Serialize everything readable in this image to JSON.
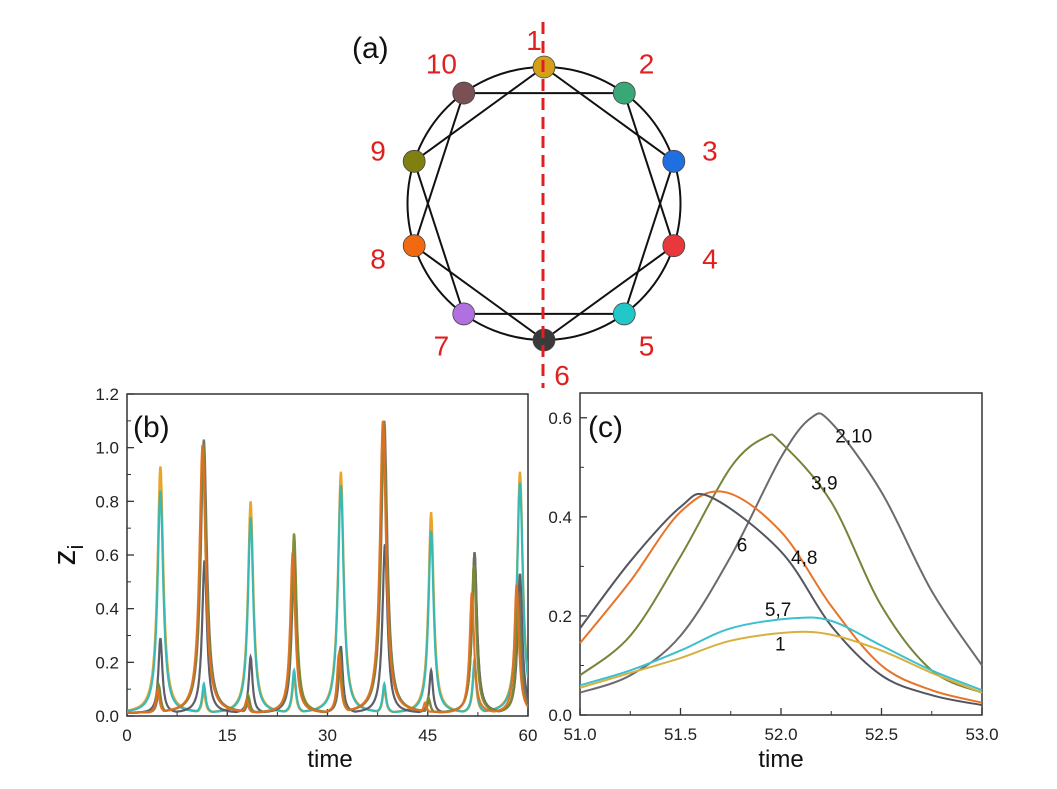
{
  "panel_a": {
    "label": "(a)",
    "label_color": "#e02020",
    "symmetry_line_color": "#e02020",
    "nodes": [
      {
        "id": "1",
        "color": "#d4a017"
      },
      {
        "id": "2",
        "color": "#3aa876"
      },
      {
        "id": "3",
        "color": "#1f6fe0"
      },
      {
        "id": "4",
        "color": "#e8383c"
      },
      {
        "id": "5",
        "color": "#22c8c8"
      },
      {
        "id": "6",
        "color": "#3a3a3a"
      },
      {
        "id": "7",
        "color": "#b070e0"
      },
      {
        "id": "8",
        "color": "#f26a10"
      },
      {
        "id": "9",
        "color": "#808010"
      },
      {
        "id": "10",
        "color": "#7a5055"
      }
    ],
    "ring": true,
    "chords": [
      [
        "1",
        "3"
      ],
      [
        "1",
        "9"
      ],
      [
        "10",
        "2"
      ],
      [
        "10",
        "8"
      ],
      [
        "9",
        "7"
      ],
      [
        "2",
        "4"
      ],
      [
        "3",
        "5"
      ],
      [
        "4",
        "6"
      ],
      [
        "8",
        "6"
      ],
      [
        "7",
        "5"
      ]
    ]
  },
  "chart_data": [
    {
      "type": "line",
      "panel_label": "(b)",
      "xlabel": "time",
      "ylabel": "z",
      "ylabel_subscript": "i",
      "xlim": [
        0,
        60
      ],
      "ylim": [
        0,
        1.2
      ],
      "xticks": [
        "0",
        "15",
        "30",
        "45",
        "60"
      ],
      "yticks": [
        "0.0",
        "0.2",
        "0.4",
        "0.6",
        "0.8",
        "1.0",
        "1.2"
      ],
      "baseline": 0.01,
      "series": [
        {
          "color": "#e8a020",
          "peaks": [
            [
              5,
              0.92
            ],
            [
              11.5,
              0.08
            ],
            [
              18.5,
              0.79
            ],
            [
              25,
              0.13
            ],
            [
              32,
              0.9
            ],
            [
              38.5,
              0.09
            ],
            [
              45.5,
              0.75
            ],
            [
              52,
              0.17
            ],
            [
              58.8,
              0.9
            ]
          ]
        },
        {
          "color": "#30b8b8",
          "peaks": [
            [
              5,
              0.83
            ],
            [
              11.5,
              0.11
            ],
            [
              18.5,
              0.73
            ],
            [
              25,
              0.16
            ],
            [
              32,
              0.85
            ],
            [
              38.5,
              0.11
            ],
            [
              45.5,
              0.68
            ],
            [
              52,
              0.2
            ],
            [
              58.8,
              0.86
            ]
          ]
        },
        {
          "color": "#555560",
          "peaks": [
            [
              5,
              0.28
            ],
            [
              11.6,
              0.57
            ],
            [
              18.5,
              0.21
            ],
            [
              25,
              0.55
            ],
            [
              32,
              0.25
            ],
            [
              38.6,
              0.63
            ],
            [
              45.5,
              0.16
            ],
            [
              52,
              0.6
            ],
            [
              58.8,
              0.52
            ]
          ]
        },
        {
          "color": "#707060",
          "peaks": [
            [
              4.8,
              0.1
            ],
            [
              11.5,
              1.02
            ],
            [
              18.2,
              0.06
            ],
            [
              25,
              0.6
            ],
            [
              31.9,
              0.22
            ],
            [
              38.5,
              1.09
            ],
            [
              45.2,
              0.05
            ],
            [
              52,
              0.6
            ],
            [
              58.7,
              0.45
            ]
          ]
        },
        {
          "color": "#7a8a30",
          "peaks": [
            [
              4.7,
              0.11
            ],
            [
              11.4,
              1.0
            ],
            [
              18.1,
              0.07
            ],
            [
              25,
              0.67
            ],
            [
              31.8,
              0.23
            ],
            [
              38.4,
              1.08
            ],
            [
              45.1,
              0.06
            ],
            [
              51.9,
              0.55
            ],
            [
              58.5,
              0.4
            ]
          ]
        },
        {
          "color": "#e07020",
          "peaks": [
            [
              4.6,
              0.09
            ],
            [
              11.3,
              1.0
            ],
            [
              17.9,
              0.05
            ],
            [
              24.8,
              0.6
            ],
            [
              31.7,
              0.22
            ],
            [
              38.3,
              1.09
            ],
            [
              44.6,
              0.04
            ],
            [
              51.6,
              0.45
            ],
            [
              58.3,
              0.48
            ]
          ]
        }
      ]
    },
    {
      "type": "line",
      "panel_label": "(c)",
      "xlabel": "time",
      "xlim": [
        51.0,
        53.0
      ],
      "ylim": [
        0,
        0.65
      ],
      "xticks": [
        "51.0",
        "51.5",
        "52.0",
        "52.5",
        "53.0"
      ],
      "yticks": [
        "0.0",
        "0.2",
        "0.4",
        "0.6"
      ],
      "series": [
        {
          "label": "2,10",
          "color": "#6e6870",
          "label_at": [
            52.27,
            0.55
          ],
          "x": [
            51,
            51.25,
            51.5,
            51.75,
            52,
            52.15,
            52.25,
            52.5,
            52.75,
            53
          ],
          "y": [
            0.045,
            0.08,
            0.16,
            0.32,
            0.52,
            0.6,
            0.59,
            0.45,
            0.25,
            0.1
          ]
        },
        {
          "label": "3,9",
          "color": "#74843a",
          "label_at": [
            52.15,
            0.455
          ],
          "x": [
            51,
            51.25,
            51.5,
            51.75,
            51.92,
            52,
            52.25,
            52.5,
            52.75,
            53
          ],
          "y": [
            0.08,
            0.16,
            0.32,
            0.5,
            0.56,
            0.55,
            0.43,
            0.22,
            0.09,
            0.045
          ]
        },
        {
          "label": "4,8",
          "color": "#e8742a",
          "label_at": [
            52.05,
            0.305
          ],
          "x": [
            51,
            51.25,
            51.5,
            51.72,
            52,
            52.25,
            52.5,
            52.75,
            53
          ],
          "y": [
            0.145,
            0.27,
            0.41,
            0.45,
            0.37,
            0.22,
            0.1,
            0.05,
            0.025
          ]
        },
        {
          "label": "6",
          "color": "#555560",
          "label_at": [
            51.78,
            0.33
          ],
          "x": [
            51,
            51.25,
            51.5,
            51.65,
            52,
            52.25,
            52.5,
            52.75,
            53
          ],
          "y": [
            0.175,
            0.31,
            0.42,
            0.44,
            0.33,
            0.18,
            0.08,
            0.04,
            0.02
          ]
        },
        {
          "label": "5,7",
          "color": "#3cc0d0",
          "label_at": [
            51.92,
            0.2
          ],
          "x": [
            51,
            51.25,
            51.5,
            51.75,
            52.05,
            52.25,
            52.5,
            52.75,
            53
          ],
          "y": [
            0.06,
            0.09,
            0.13,
            0.175,
            0.195,
            0.19,
            0.14,
            0.09,
            0.05
          ]
        },
        {
          "label": "1",
          "color": "#d8b040",
          "label_at": [
            51.97,
            0.13
          ],
          "x": [
            51,
            51.25,
            51.5,
            51.75,
            52.05,
            52.25,
            52.5,
            52.75,
            53
          ],
          "y": [
            0.055,
            0.085,
            0.115,
            0.15,
            0.167,
            0.162,
            0.13,
            0.085,
            0.045
          ]
        }
      ]
    }
  ]
}
